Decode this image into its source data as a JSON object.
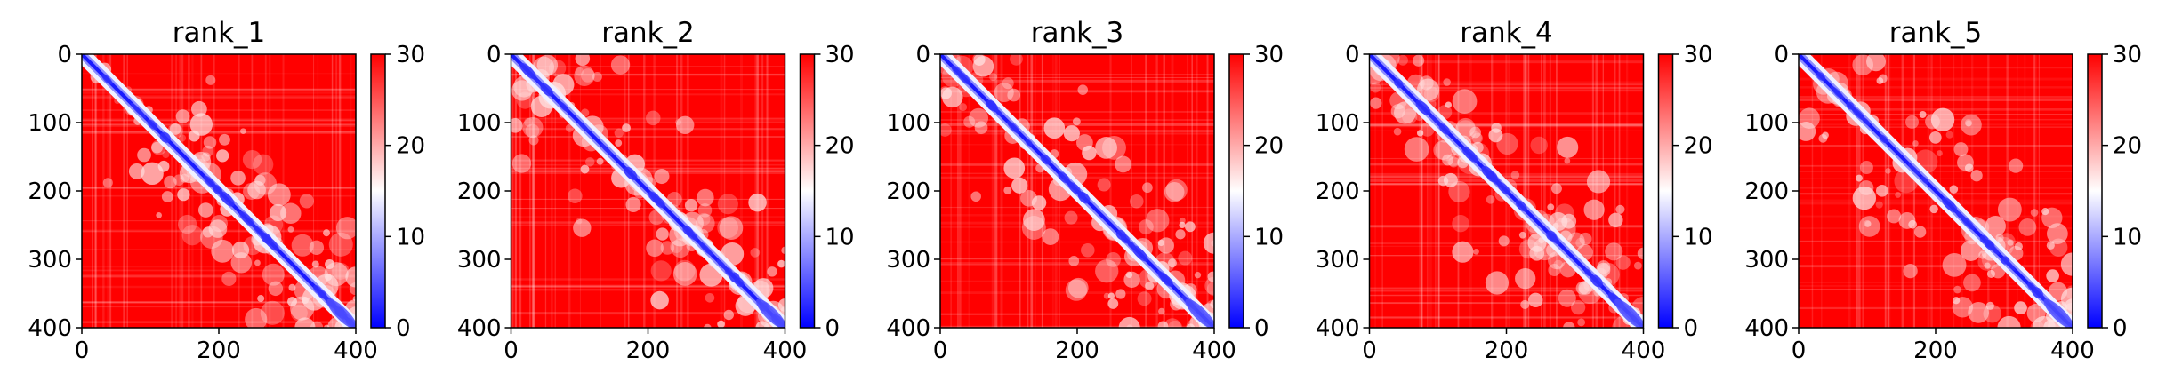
{
  "chart_data": [
    {
      "type": "heatmap",
      "title": "rank_1",
      "x_ticks": [
        "0",
        "200",
        "400"
      ],
      "y_ticks": [
        "0",
        "100",
        "200",
        "300",
        "400"
      ],
      "colorbar_ticks": [
        "0",
        "10",
        "20",
        "30"
      ],
      "xlim": [
        0,
        400
      ],
      "ylim": [
        400,
        0
      ],
      "vmin": 0,
      "vmax": 30,
      "colormap": "bwr",
      "diagonal_min": 0,
      "seed": 11
    },
    {
      "type": "heatmap",
      "title": "rank_2",
      "x_ticks": [
        "0",
        "200",
        "400"
      ],
      "y_ticks": [
        "0",
        "100",
        "200",
        "300",
        "400"
      ],
      "colorbar_ticks": [
        "0",
        "10",
        "20",
        "30"
      ],
      "xlim": [
        0,
        400
      ],
      "ylim": [
        400,
        0
      ],
      "vmin": 0,
      "vmax": 30,
      "colormap": "bwr",
      "diagonal_min": 0,
      "seed": 23
    },
    {
      "type": "heatmap",
      "title": "rank_3",
      "x_ticks": [
        "0",
        "200",
        "400"
      ],
      "y_ticks": [
        "0",
        "100",
        "200",
        "300",
        "400"
      ],
      "colorbar_ticks": [
        "0",
        "10",
        "20",
        "30"
      ],
      "xlim": [
        0,
        400
      ],
      "ylim": [
        400,
        0
      ],
      "vmin": 0,
      "vmax": 30,
      "colormap": "bwr",
      "diagonal_min": 0,
      "seed": 37
    },
    {
      "type": "heatmap",
      "title": "rank_4",
      "x_ticks": [
        "0",
        "200",
        "400"
      ],
      "y_ticks": [
        "0",
        "100",
        "200",
        "300",
        "400"
      ],
      "colorbar_ticks": [
        "0",
        "10",
        "20",
        "30"
      ],
      "xlim": [
        0,
        400
      ],
      "ylim": [
        400,
        0
      ],
      "vmin": 0,
      "vmax": 30,
      "colormap": "bwr",
      "diagonal_min": 0,
      "seed": 41
    },
    {
      "type": "heatmap",
      "title": "rank_5",
      "x_ticks": [
        "0",
        "200",
        "400"
      ],
      "y_ticks": [
        "0",
        "100",
        "200",
        "300",
        "400"
      ],
      "colorbar_ticks": [
        "0",
        "10",
        "20",
        "30"
      ],
      "xlim": [
        0,
        400
      ],
      "ylim": [
        400,
        0
      ],
      "vmin": 0,
      "vmax": 30,
      "colormap": "bwr",
      "diagonal_min": 0,
      "seed": 53
    }
  ],
  "colors": {
    "low": "#0000ff",
    "mid": "#ffffff",
    "high": "#ff0000"
  }
}
